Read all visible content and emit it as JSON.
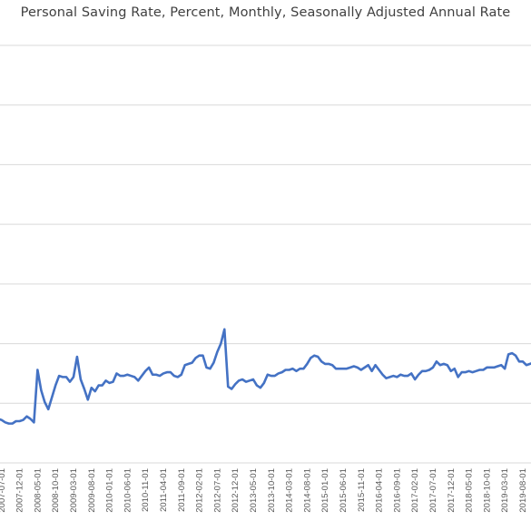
{
  "chart_data": {
    "type": "line",
    "title": "Personal Saving Rate, Percent, Monthly, Seasonally Adjusted Annual Rate",
    "xlabel": "",
    "ylabel": "",
    "ylim": [
      0,
      35
    ],
    "y_ticks": [
      0,
      5,
      10,
      15,
      20,
      25,
      30,
      35
    ],
    "grid": true,
    "legend": "none",
    "line_color": "#4472C4",
    "x_tick_labels": [
      "2007-07-01",
      "2007-12-01",
      "2008-05-01",
      "2008-10-01",
      "2009-03-01",
      "2009-08-01",
      "2010-01-01",
      "2010-06-01",
      "2010-11-01",
      "2011-04-01",
      "2011-09-01",
      "2012-02-01",
      "2012-07-01",
      "2012-12-01",
      "2013-05-01",
      "2013-10-01",
      "2014-03-01",
      "2014-08-01",
      "2015-01-01",
      "2015-06-01",
      "2015-11-01",
      "2016-04-01",
      "2016-09-01",
      "2017-02-01",
      "2017-07-01",
      "2017-12-01",
      "2018-05-01",
      "2018-10-01",
      "2019-03-01",
      "2019-08-01"
    ],
    "series": [
      {
        "x_start": "2007-01-01",
        "frequency": "monthly",
        "values": [
          4.3,
          4.2,
          4.0,
          3.9,
          3.7,
          3.7,
          3.6,
          3.4,
          3.3,
          3.3,
          3.5,
          3.5,
          3.6,
          3.9,
          3.7,
          3.4,
          7.8,
          6.1,
          5.1,
          4.5,
          5.5,
          6.5,
          7.3,
          7.2,
          7.2,
          6.8,
          7.2,
          8.9,
          7.0,
          6.2,
          5.3,
          6.3,
          6.0,
          6.5,
          6.5,
          6.9,
          6.7,
          6.8,
          7.5,
          7.3,
          7.3,
          7.4,
          7.3,
          7.2,
          6.9,
          7.3,
          7.7,
          8.0,
          7.4,
          7.4,
          7.3,
          7.5,
          7.6,
          7.6,
          7.3,
          7.2,
          7.4,
          8.2,
          8.3,
          8.4,
          8.8,
          9.0,
          9.0,
          8.0,
          7.9,
          8.4,
          9.3,
          10.0,
          11.2,
          6.4,
          6.2,
          6.6,
          6.9,
          7.0,
          6.8,
          6.9,
          7.0,
          6.5,
          6.3,
          6.7,
          7.4,
          7.3,
          7.3,
          7.5,
          7.6,
          7.8,
          7.8,
          7.9,
          7.7,
          7.9,
          7.9,
          8.3,
          8.8,
          9.0,
          8.9,
          8.5,
          8.3,
          8.3,
          8.2,
          7.9,
          7.9,
          7.9,
          7.9,
          8.0,
          8.1,
          8.0,
          7.8,
          8.0,
          8.2,
          7.7,
          8.2,
          7.8,
          7.4,
          7.1,
          7.2,
          7.3,
          7.2,
          7.4,
          7.3,
          7.3,
          7.5,
          7.0,
          7.4,
          7.7,
          7.7,
          7.8,
          8.0,
          8.5,
          8.2,
          8.3,
          8.2,
          7.7,
          7.9,
          7.2,
          7.6,
          7.6,
          7.7,
          7.6,
          7.7,
          7.8,
          7.8,
          8.0,
          8.0,
          8.0,
          8.1,
          8.2,
          7.9,
          9.1,
          9.2,
          9.0,
          8.5,
          8.5,
          8.2,
          8.3,
          8.4,
          8.1,
          8.3,
          8.5,
          8.6
        ]
      }
    ]
  }
}
